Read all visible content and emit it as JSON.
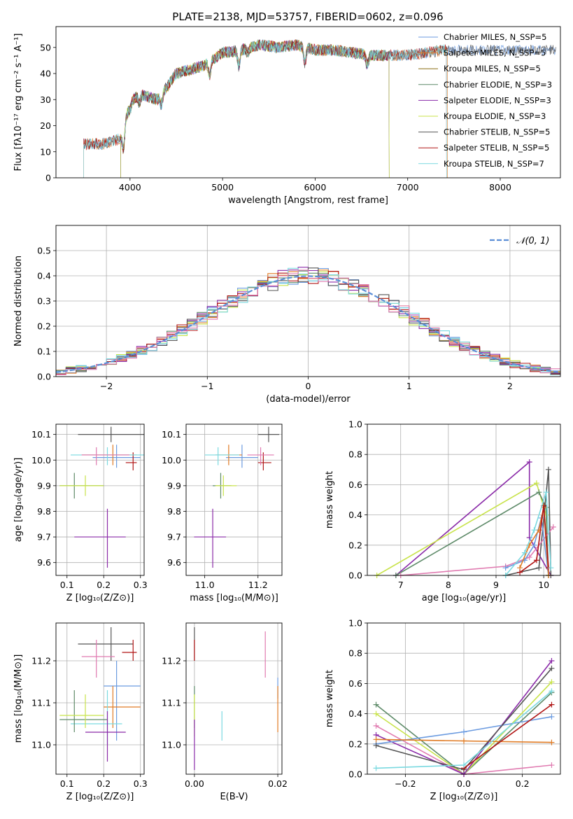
{
  "page_title": "PLATE=2138, MJD=53757, FIBERID=0602, z=0.096",
  "colors": {
    "chabrier_miles": "#6b9be0",
    "salpeter_miles": "#e07b24",
    "kroupa_miles": "#8a6d12",
    "chabrier_elodie": "#5d8a68",
    "salpeter_elodie": "#8a2aa8",
    "kroupa_elodie": "#c8e34a",
    "chabrier_stelib": "#555555",
    "salpeter_stelib": "#b01515",
    "kroupa_stelib": "#7ad9e0",
    "normal": "#5b8ed6",
    "extra_pink": "#e07ab0",
    "extra_olive": "#a4b23a"
  },
  "chart_data": [
    {
      "id": "spectrum",
      "type": "line",
      "title": "PLATE=2138, MJD=53757, FIBERID=0602, z=0.096",
      "xlabel": "wavelength [Angstrom, rest frame]",
      "ylabel": "Flux [fλ10⁻¹⁷ erg cm⁻² s⁻¹ A⁻¹]",
      "xlim": [
        3200,
        8650
      ],
      "ylim": [
        0,
        58
      ],
      "xticks": [
        4000,
        5000,
        6000,
        7000,
        8000
      ],
      "yticks": [
        0,
        10,
        20,
        30,
        40,
        50
      ],
      "legend_position": "top-right",
      "legend": [
        "Chabrier MILES, N_SSP=5",
        "Salpeter MILES, N_SSP=5",
        "Kroupa MILES, N_SSP=5",
        "Chabrier ELODIE, N_SSP=3",
        "Salpeter ELODIE, N_SSP=3",
        "Kroupa ELODIE, N_SSP=3",
        "Chabrier STELIB, N_SSP=5",
        "Salpeter STELIB, N_SSP=5",
        "Kroupa STELIB, N_SSP=7"
      ],
      "legend_keys": [
        "chabrier_miles",
        "salpeter_miles",
        "kroupa_miles",
        "chabrier_elodie",
        "salpeter_elodie",
        "kroupa_elodie",
        "chabrier_stelib",
        "salpeter_stelib",
        "kroupa_stelib"
      ],
      "continuum": {
        "x": [
          3500,
          3700,
          3900,
          4000,
          4100,
          4300,
          4500,
          4800,
          5000,
          5200,
          5400,
          5600,
          5800,
          6000,
          6200,
          6400,
          6600,
          6800,
          7000,
          7200,
          7400,
          7500
        ],
        "y": [
          13,
          13,
          15,
          29,
          32,
          30,
          40,
          43,
          48,
          49,
          51,
          50,
          51,
          49,
          49,
          48,
          47,
          47,
          47,
          48,
          49,
          49
        ]
      },
      "series_ranges": [
        {
          "key": "chabrier_miles",
          "x": [
            3500,
            8600
          ]
        },
        {
          "key": "salpeter_miles",
          "x": [
            3500,
            7430
          ]
        },
        {
          "key": "kroupa_miles",
          "x": [
            3900,
            6800
          ]
        },
        {
          "key": "chabrier_elodie",
          "x": [
            3900,
            6800
          ]
        },
        {
          "key": "salpeter_elodie",
          "x": [
            3900,
            6800
          ]
        },
        {
          "key": "kroupa_elodie",
          "x": [
            3900,
            6800
          ]
        },
        {
          "key": "chabrier_stelib",
          "x": [
            3500,
            8600
          ]
        },
        {
          "key": "salpeter_stelib",
          "x": [
            3500,
            7420
          ]
        },
        {
          "key": "kroupa_stelib",
          "x": [
            3500,
            7420
          ]
        }
      ]
    },
    {
      "id": "residuals",
      "type": "line",
      "xlabel": "(data-model)/error",
      "ylabel": "Normed distribution",
      "xlim": [
        -2.5,
        2.5
      ],
      "ylim": [
        0,
        0.6
      ],
      "xticks": [
        -2,
        -1,
        0,
        1,
        2
      ],
      "xtick_labels": [
        "−2",
        "−1",
        "0",
        "1",
        "2"
      ],
      "yticks": [
        0.0,
        0.1,
        0.2,
        0.3,
        0.4,
        0.5
      ],
      "grid": true,
      "legend": [
        "𝒩(0, 1)"
      ],
      "legend_position": "top-right",
      "normal_sigma": 1,
      "hist_keys": [
        "chabrier_miles",
        "salpeter_miles",
        "kroupa_elodie",
        "chabrier_elodie",
        "salpeter_elodie",
        "chabrier_stelib",
        "salpeter_stelib",
        "kroupa_stelib",
        "extra_pink"
      ]
    },
    {
      "id": "age_vs_z",
      "type": "scatter",
      "xlabel": "Z [log₁₀(Z/Z⊙)]",
      "ylabel": "age  [log₁₀(age/yr)]",
      "xlim": [
        0.07,
        0.31
      ],
      "ylim": [
        9.55,
        10.14
      ],
      "xticks": [
        0.1,
        0.2,
        0.3
      ],
      "yticks": [
        9.6,
        9.7,
        9.8,
        9.9,
        10.0,
        10.1
      ],
      "grid": true,
      "points": [
        {
          "key": "chabrier_stelib",
          "x": 0.22,
          "y": 10.1,
          "xerr": [
            0.13,
            0.31
          ],
          "yerr": [
            10.07,
            10.13
          ]
        },
        {
          "key": "chabrier_miles",
          "x": 0.235,
          "y": 10.01,
          "xerr": [
            0.17,
            0.3
          ],
          "yerr": [
            9.97,
            10.06
          ]
        },
        {
          "key": "salpeter_miles",
          "x": 0.225,
          "y": 10.02,
          "xerr": [
            0.14,
            0.29
          ],
          "yerr": [
            9.98,
            10.06
          ]
        },
        {
          "key": "salpeter_stelib",
          "x": 0.28,
          "y": 9.99,
          "xerr": [
            0.26,
            0.29
          ],
          "yerr": [
            9.96,
            10.03
          ]
        },
        {
          "key": "kroupa_stelib",
          "x": 0.21,
          "y": 10.02,
          "xerr": [
            0.11,
            0.31
          ],
          "yerr": [
            9.98,
            10.05
          ]
        },
        {
          "key": "extra_pink",
          "x": 0.18,
          "y": 10.02,
          "xerr": [
            0.14,
            0.27
          ],
          "yerr": [
            9.98,
            10.05
          ]
        },
        {
          "key": "chabrier_elodie",
          "x": 0.12,
          "y": 9.9,
          "xerr": [
            0.08,
            0.2
          ],
          "yerr": [
            9.85,
            9.95
          ]
        },
        {
          "key": "kroupa_elodie",
          "x": 0.15,
          "y": 9.9,
          "xerr": [
            0.08,
            0.2
          ],
          "yerr": [
            9.86,
            9.94
          ]
        },
        {
          "key": "salpeter_elodie",
          "x": 0.21,
          "y": 9.7,
          "xerr": [
            0.12,
            0.26
          ],
          "yerr": [
            9.58,
            9.81
          ]
        }
      ]
    },
    {
      "id": "age_vs_mass",
      "type": "scatter",
      "xlabel": "mass [log₁₀(M/M⊙)]",
      "xlim": [
        10.93,
        11.29
      ],
      "ylim": [
        9.55,
        10.14
      ],
      "xticks": [
        11.0,
        11.2
      ],
      "yticks": [
        9.6,
        9.7,
        9.8,
        9.9,
        10.0,
        10.1
      ],
      "grid": true,
      "points": [
        {
          "key": "chabrier_stelib",
          "x": 11.24,
          "y": 10.1,
          "xerr": [
            11.2,
            11.28
          ],
          "yerr": [
            10.07,
            10.13
          ]
        },
        {
          "key": "chabrier_miles",
          "x": 11.14,
          "y": 10.01,
          "xerr": [
            11.08,
            11.2
          ],
          "yerr": [
            9.97,
            10.06
          ]
        },
        {
          "key": "salpeter_miles",
          "x": 11.09,
          "y": 10.02,
          "xerr": [
            11.04,
            11.14
          ],
          "yerr": [
            9.98,
            10.06
          ]
        },
        {
          "key": "salpeter_stelib",
          "x": 11.22,
          "y": 9.99,
          "xerr": [
            11.2,
            11.25
          ],
          "yerr": [
            9.96,
            10.03
          ]
        },
        {
          "key": "kroupa_stelib",
          "x": 11.05,
          "y": 10.02,
          "xerr": [
            11.0,
            11.13
          ],
          "yerr": [
            9.98,
            10.05
          ]
        },
        {
          "key": "extra_pink",
          "x": 11.21,
          "y": 10.02,
          "xerr": [
            11.16,
            11.26
          ],
          "yerr": [
            9.98,
            10.05
          ]
        },
        {
          "key": "chabrier_elodie",
          "x": 11.06,
          "y": 9.9,
          "xerr": [
            11.03,
            11.1
          ],
          "yerr": [
            9.85,
            9.95
          ]
        },
        {
          "key": "kroupa_elodie",
          "x": 11.07,
          "y": 9.9,
          "xerr": [
            11.04,
            11.12
          ],
          "yerr": [
            9.86,
            9.94
          ]
        },
        {
          "key": "salpeter_elodie",
          "x": 11.03,
          "y": 9.7,
          "xerr": [
            10.96,
            11.08
          ],
          "yerr": [
            9.58,
            9.81
          ]
        }
      ]
    },
    {
      "id": "weight_vs_age",
      "type": "line",
      "xlabel": "age  [log₁₀(age/yr)]",
      "ylabel": "mass weight",
      "xlim": [
        6.3,
        10.35
      ],
      "ylim": [
        0,
        1.0
      ],
      "xticks": [
        7,
        8,
        9,
        10
      ],
      "yticks": [
        0.0,
        0.2,
        0.4,
        0.6,
        0.8,
        1.0
      ],
      "grid": true,
      "series": [
        {
          "key": "salpeter_elodie",
          "x": [
            6.9,
            9.7,
            9.7,
            10.15
          ],
          "y": [
            0,
            0.75,
            0.25,
            0
          ]
        },
        {
          "key": "kroupa_elodie",
          "x": [
            6.5,
            9.85,
            10.05,
            10.1
          ],
          "y": [
            0,
            0.61,
            0.4,
            0
          ]
        },
        {
          "key": "chabrier_elodie",
          "x": [
            6.9,
            9.9,
            10.05,
            10.1
          ],
          "y": [
            0,
            0.55,
            0.45,
            0
          ]
        },
        {
          "key": "chabrier_stelib",
          "x": [
            9.2,
            9.9,
            10.1,
            10.15
          ],
          "y": [
            0,
            0.05,
            0.7,
            0
          ]
        },
        {
          "key": "extra_pink",
          "x": [
            7.0,
            9.2,
            9.7,
            10.2
          ],
          "y": [
            0,
            0.06,
            0.12,
            0.32
          ]
        },
        {
          "key": "chabrier_miles",
          "x": [
            9.2,
            9.6,
            9.8,
            9.95,
            10.1
          ],
          "y": [
            0.05,
            0.1,
            0.2,
            0.38,
            0
          ]
        },
        {
          "key": "salpeter_miles",
          "x": [
            9.5,
            9.7,
            9.9,
            10.0,
            10.1
          ],
          "y": [
            0.05,
            0.2,
            0.3,
            0.45,
            0
          ]
        },
        {
          "key": "salpeter_stelib",
          "x": [
            9.5,
            9.85,
            10.0,
            10.1
          ],
          "y": [
            0.02,
            0.1,
            0.46,
            0.05
          ]
        },
        {
          "key": "kroupa_stelib",
          "x": [
            9.2,
            9.6,
            9.8,
            10.05,
            10.15
          ],
          "y": [
            0,
            0.15,
            0.3,
            0.55,
            0.05
          ]
        }
      ]
    },
    {
      "id": "mass_vs_z",
      "type": "scatter",
      "xlabel": "Z [log₁₀(Z/Z⊙)]",
      "ylabel": "mass [log₁₀(M/M⊙)]",
      "xlim": [
        0.07,
        0.31
      ],
      "ylim": [
        10.93,
        11.29
      ],
      "xticks": [
        0.1,
        0.2,
        0.3
      ],
      "yticks": [
        11.0,
        11.1,
        11.2
      ],
      "grid": true,
      "points": [
        {
          "key": "chabrier_stelib",
          "x": 0.22,
          "y": 11.24,
          "xerr": [
            0.13,
            0.28
          ],
          "yerr": [
            11.2,
            11.28
          ]
        },
        {
          "key": "salpeter_stelib",
          "x": 0.28,
          "y": 11.22,
          "xerr": [
            0.25,
            0.29
          ],
          "yerr": [
            11.2,
            11.25
          ]
        },
        {
          "key": "extra_pink",
          "x": 0.18,
          "y": 11.21,
          "xerr": [
            0.14,
            0.23
          ],
          "yerr": [
            11.16,
            11.25
          ]
        },
        {
          "key": "chabrier_miles",
          "x": 0.235,
          "y": 11.14,
          "xerr": [
            0.2,
            0.3
          ],
          "yerr": [
            11.01,
            11.2
          ]
        },
        {
          "key": "salpeter_miles",
          "x": 0.225,
          "y": 11.09,
          "xerr": [
            0.2,
            0.3
          ],
          "yerr": [
            11.04,
            11.14
          ]
        },
        {
          "key": "kroupa_stelib",
          "x": 0.21,
          "y": 11.05,
          "xerr": [
            0.11,
            0.25
          ],
          "yerr": [
            11.0,
            11.13
          ]
        },
        {
          "key": "chabrier_elodie",
          "x": 0.12,
          "y": 11.06,
          "xerr": [
            0.08,
            0.21
          ],
          "yerr": [
            11.03,
            11.13
          ]
        },
        {
          "key": "kroupa_elodie",
          "x": 0.15,
          "y": 11.07,
          "xerr": [
            0.08,
            0.2
          ],
          "yerr": [
            11.04,
            11.12
          ]
        },
        {
          "key": "salpeter_elodie",
          "x": 0.21,
          "y": 11.03,
          "xerr": [
            0.15,
            0.26
          ],
          "yerr": [
            10.96,
            11.08
          ]
        }
      ]
    },
    {
      "id": "mass_vs_ebv",
      "type": "scatter",
      "xlabel": "E(B-V)",
      "xlim": [
        -0.002,
        0.021
      ],
      "ylim": [
        10.93,
        11.29
      ],
      "xticks": [
        0.0,
        0.02
      ],
      "xtick_labels": [
        "0.00",
        "0.02"
      ],
      "yticks": [
        11.0,
        11.1,
        11.2
      ],
      "grid": true,
      "points": [
        {
          "key": "chabrier_stelib",
          "x": 0.0,
          "y": 11.24,
          "yerr": [
            11.2,
            11.28
          ]
        },
        {
          "key": "salpeter_stelib",
          "x": 0.0,
          "y": 11.22,
          "yerr": [
            11.2,
            11.25
          ]
        },
        {
          "key": "extra_pink",
          "x": 0.017,
          "y": 11.21,
          "yerr": [
            11.16,
            11.27
          ]
        },
        {
          "key": "chabrier_miles",
          "x": 0.02,
          "y": 11.14,
          "yerr": [
            11.11,
            11.16
          ]
        },
        {
          "key": "salpeter_miles",
          "x": 0.02,
          "y": 11.09,
          "yerr": [
            11.03,
            11.14
          ]
        },
        {
          "key": "kroupa_stelib",
          "x": 0.0066,
          "y": 11.05,
          "yerr": [
            11.01,
            11.08
          ]
        },
        {
          "key": "chabrier_elodie",
          "x": 0.0,
          "y": 11.09,
          "yerr": [
            11.04,
            11.14
          ]
        },
        {
          "key": "kroupa_elodie",
          "x": 0.0,
          "y": 11.07,
          "yerr": [
            11.02,
            11.12
          ]
        },
        {
          "key": "salpeter_elodie",
          "x": 0.0,
          "y": 11.0,
          "yerr": [
            10.94,
            11.06
          ]
        }
      ]
    },
    {
      "id": "weight_vs_z",
      "type": "line",
      "xlabel": "Z [log₁₀(Z/Z⊙)]",
      "ylabel": "mass weight",
      "xlim": [
        -0.33,
        0.33
      ],
      "ylim": [
        0,
        1.0
      ],
      "xticks": [
        -0.2,
        0.0,
        0.2
      ],
      "xtick_labels": [
        "−0.2",
        "0.0",
        "0.2"
      ],
      "yticks": [
        0.0,
        0.2,
        0.4,
        0.6,
        0.8,
        1.0
      ],
      "grid": true,
      "series": [
        {
          "key": "chabrier_elodie",
          "x": [
            -0.3,
            0.0,
            0.3
          ],
          "y": [
            0.46,
            0.0,
            0.54
          ]
        },
        {
          "key": "kroupa_elodie",
          "x": [
            -0.3,
            0.0,
            0.3
          ],
          "y": [
            0.4,
            0.0,
            0.61
          ]
        },
        {
          "key": "extra_pink",
          "x": [
            -0.3,
            0.0,
            0.3
          ],
          "y": [
            0.32,
            0.0,
            0.06
          ]
        },
        {
          "key": "salpeter_elodie",
          "x": [
            -0.3,
            0.0,
            0.3
          ],
          "y": [
            0.26,
            0.0,
            0.75
          ]
        },
        {
          "key": "chabrier_miles",
          "x": [
            -0.3,
            0.0,
            0.3
          ],
          "y": [
            0.2,
            0.28,
            0.38
          ]
        },
        {
          "key": "salpeter_miles",
          "x": [
            -0.3,
            0.0,
            0.3
          ],
          "y": [
            0.23,
            0.22,
            0.21
          ]
        },
        {
          "key": "chabrier_stelib",
          "x": [
            -0.3,
            0.0,
            0.3
          ],
          "y": [
            0.19,
            0.03,
            0.7
          ]
        },
        {
          "key": "salpeter_stelib",
          "x": [
            0.0,
            0.3
          ],
          "y": [
            0.04,
            0.46
          ]
        },
        {
          "key": "kroupa_stelib",
          "x": [
            -0.3,
            0.0,
            0.3
          ],
          "y": [
            0.04,
            0.06,
            0.55
          ]
        }
      ]
    }
  ]
}
